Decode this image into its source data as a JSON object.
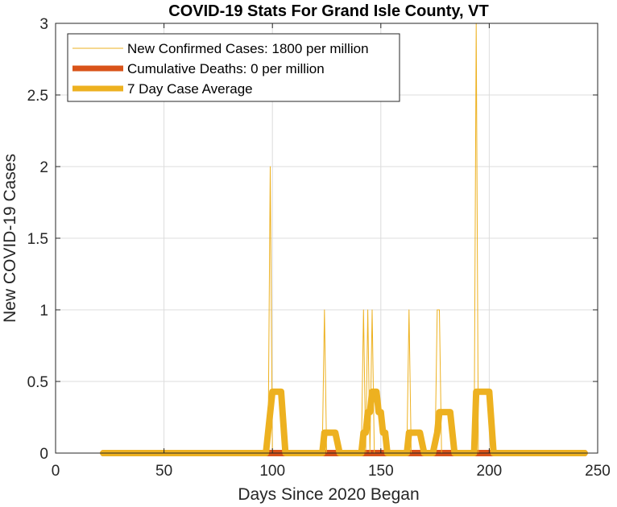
{
  "chart_data": {
    "type": "line",
    "title": "COVID-19 Stats For Grand Isle County, VT",
    "xlabel": "Days Since 2020 Began",
    "ylabel": "New COVID-19 Cases",
    "xlim": [
      0,
      250
    ],
    "ylim": [
      0,
      3
    ],
    "x_ticks": [
      0,
      50,
      100,
      150,
      200,
      250
    ],
    "y_ticks": [
      0,
      0.5,
      1,
      1.5,
      2,
      2.5,
      3
    ],
    "x_tick_labels": [
      "0",
      "50",
      "100",
      "150",
      "200",
      "250"
    ],
    "y_tick_labels": [
      "0",
      "0.5",
      "1",
      "1.5",
      "2",
      "2.5",
      "3"
    ],
    "grid": true,
    "legend_position": "top-left",
    "series": [
      {
        "name": "New Confirmed Cases: 1800 per million",
        "color": "#EDB120",
        "style": "thin",
        "points": [
          [
            22,
            0
          ],
          [
            98,
            0
          ],
          [
            99,
            2
          ],
          [
            100,
            0
          ],
          [
            123,
            0
          ],
          [
            124,
            1
          ],
          [
            125,
            0
          ],
          [
            141,
            0
          ],
          [
            142,
            1
          ],
          [
            143,
            0
          ],
          [
            144,
            1
          ],
          [
            145,
            0
          ],
          [
            146,
            1
          ],
          [
            147,
            0
          ],
          [
            162,
            0
          ],
          [
            163,
            1
          ],
          [
            164,
            0
          ],
          [
            175,
            0
          ],
          [
            176,
            1
          ],
          [
            177,
            1
          ],
          [
            178,
            0
          ],
          [
            193,
            0
          ],
          [
            194,
            3
          ],
          [
            195,
            0
          ],
          [
            244,
            0
          ]
        ]
      },
      {
        "name": "Cumulative Deaths: 0 per million",
        "color": "#D95319",
        "style": "thick",
        "points": [
          [
            22,
            0
          ],
          [
            244,
            0
          ]
        ]
      },
      {
        "name": "7 Day Case Average",
        "color": "#EDB120",
        "style": "thick",
        "points": [
          [
            22,
            0
          ],
          [
            97,
            0
          ],
          [
            99,
            0.2857
          ],
          [
            100,
            0.4286
          ],
          [
            104,
            0.4286
          ],
          [
            106,
            0
          ],
          [
            123,
            0
          ],
          [
            124,
            0.1429
          ],
          [
            129,
            0.1429
          ],
          [
            131,
            0
          ],
          [
            141,
            0
          ],
          [
            142,
            0.1429
          ],
          [
            143,
            0.1429
          ],
          [
            144,
            0.2857
          ],
          [
            145,
            0.2857
          ],
          [
            146,
            0.4286
          ],
          [
            148,
            0.4286
          ],
          [
            149,
            0.2857
          ],
          [
            150,
            0.2857
          ],
          [
            151,
            0.1429
          ],
          [
            152,
            0.1429
          ],
          [
            153,
            0
          ],
          [
            162,
            0
          ],
          [
            163,
            0.1429
          ],
          [
            168,
            0.1429
          ],
          [
            170,
            0
          ],
          [
            174,
            0
          ],
          [
            176,
            0.1429
          ],
          [
            177,
            0.2857
          ],
          [
            182,
            0.2857
          ],
          [
            184,
            0
          ],
          [
            193,
            0
          ],
          [
            194,
            0.4286
          ],
          [
            200,
            0.4286
          ],
          [
            202,
            0
          ],
          [
            244,
            0
          ]
        ]
      }
    ]
  }
}
